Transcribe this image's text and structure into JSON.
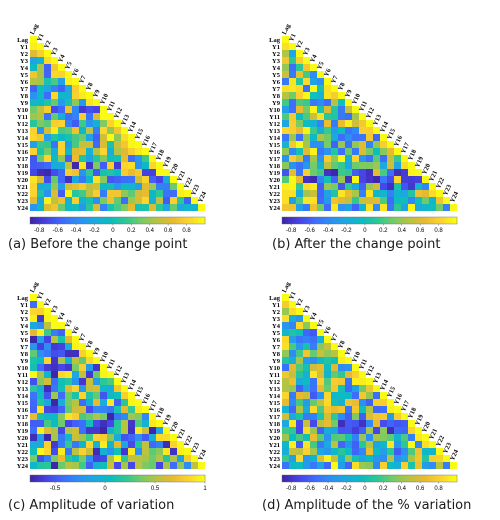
{
  "labels": [
    "Lag",
    "Y1",
    "Y2",
    "Y3",
    "Y4",
    "Y5",
    "Y6",
    "Y7",
    "Y8",
    "Y9",
    "Y10",
    "Y11",
    "Y12",
    "Y13",
    "Y14",
    "Y15",
    "Y16",
    "Y17",
    "Y18",
    "Y19",
    "Y20",
    "Y21",
    "Y22",
    "Y23",
    "Y24"
  ],
  "chart_data": [
    {
      "type": "heatmap",
      "caption": "(a) Before the change point",
      "labels": [
        "Lag",
        "Y1",
        "Y2",
        "Y3",
        "Y4",
        "Y5",
        "Y6",
        "Y7",
        "Y8",
        "Y9",
        "Y10",
        "Y11",
        "Y12",
        "Y13",
        "Y14",
        "Y15",
        "Y16",
        "Y17",
        "Y18",
        "Y19",
        "Y20",
        "Y21",
        "Y22",
        "Y23",
        "Y24"
      ],
      "triangle": "lower",
      "colorbar_ticks": [
        "-0.8",
        "-0.6",
        "-0.4",
        "-0.2",
        "0",
        "0.2",
        "0.4",
        "0.6",
        "0.8"
      ],
      "clim": [
        -0.9,
        1.0
      ],
      "seed": 11,
      "bias": 0.1,
      "strong_rows": [
        10,
        18,
        19,
        20
      ]
    },
    {
      "type": "heatmap",
      "caption": "(b) After the change point",
      "labels": [
        "Lag",
        "Y1",
        "Y2",
        "Y3",
        "Y4",
        "Y5",
        "Y6",
        "Y7",
        "Y8",
        "Y9",
        "Y10",
        "Y11",
        "Y12",
        "Y13",
        "Y14",
        "Y15",
        "Y16",
        "Y17",
        "Y18",
        "Y19",
        "Y20",
        "Y21",
        "Y22",
        "Y23",
        "Y24"
      ],
      "triangle": "lower",
      "colorbar_ticks": [
        "-0.8",
        "-0.6",
        "-0.4",
        "-0.2",
        "0",
        "0.2",
        "0.4",
        "0.6",
        "0.8"
      ],
      "clim": [
        -0.9,
        1.0
      ],
      "seed": 23,
      "bias": 0.15,
      "strong_rows": [
        19,
        20,
        21
      ]
    },
    {
      "type": "heatmap",
      "caption": "(c) Amplitude of variation",
      "labels": [
        "Lag",
        "Y1",
        "Y2",
        "Y3",
        "Y4",
        "Y5",
        "Y6",
        "Y7",
        "Y8",
        "Y9",
        "Y10",
        "Y11",
        "Y12",
        "Y13",
        "Y14",
        "Y15",
        "Y16",
        "Y17",
        "Y18",
        "Y19",
        "Y20",
        "Y21",
        "Y22",
        "Y23",
        "Y24"
      ],
      "triangle": "lower",
      "colorbar_ticks": [
        "-0.5",
        "0",
        "0.5",
        "1"
      ],
      "clim": [
        -0.75,
        1.0
      ],
      "seed": 37,
      "bias": -0.05,
      "strong_rows": [
        10,
        18
      ]
    },
    {
      "type": "heatmap",
      "caption": "(d) Amplitude of the % variation",
      "labels": [
        "Lag",
        "Y1",
        "Y2",
        "Y3",
        "Y4",
        "Y5",
        "Y6",
        "Y7",
        "Y8",
        "Y9",
        "Y10",
        "Y11",
        "Y12",
        "Y13",
        "Y14",
        "Y15",
        "Y16",
        "Y17",
        "Y18",
        "Y19",
        "Y20",
        "Y21",
        "Y22",
        "Y23",
        "Y24"
      ],
      "triangle": "lower",
      "colorbar_ticks": [
        "-0.8",
        "-0.6",
        "-0.4",
        "-0.2",
        "0",
        "0.2",
        "0.4",
        "0.6",
        "0.8"
      ],
      "clim": [
        -0.9,
        1.0
      ],
      "seed": 53,
      "bias": 0.1,
      "strong_rows": [
        18,
        19
      ]
    }
  ],
  "colormap": [
    "#3e26a8",
    "#4743e6",
    "#3e6cfb",
    "#2d8ef3",
    "#1ca9df",
    "#0cbcc0",
    "#2cc795",
    "#74cb67",
    "#b5c443",
    "#e7ba30",
    "#fbd22f",
    "#f9fb15"
  ]
}
